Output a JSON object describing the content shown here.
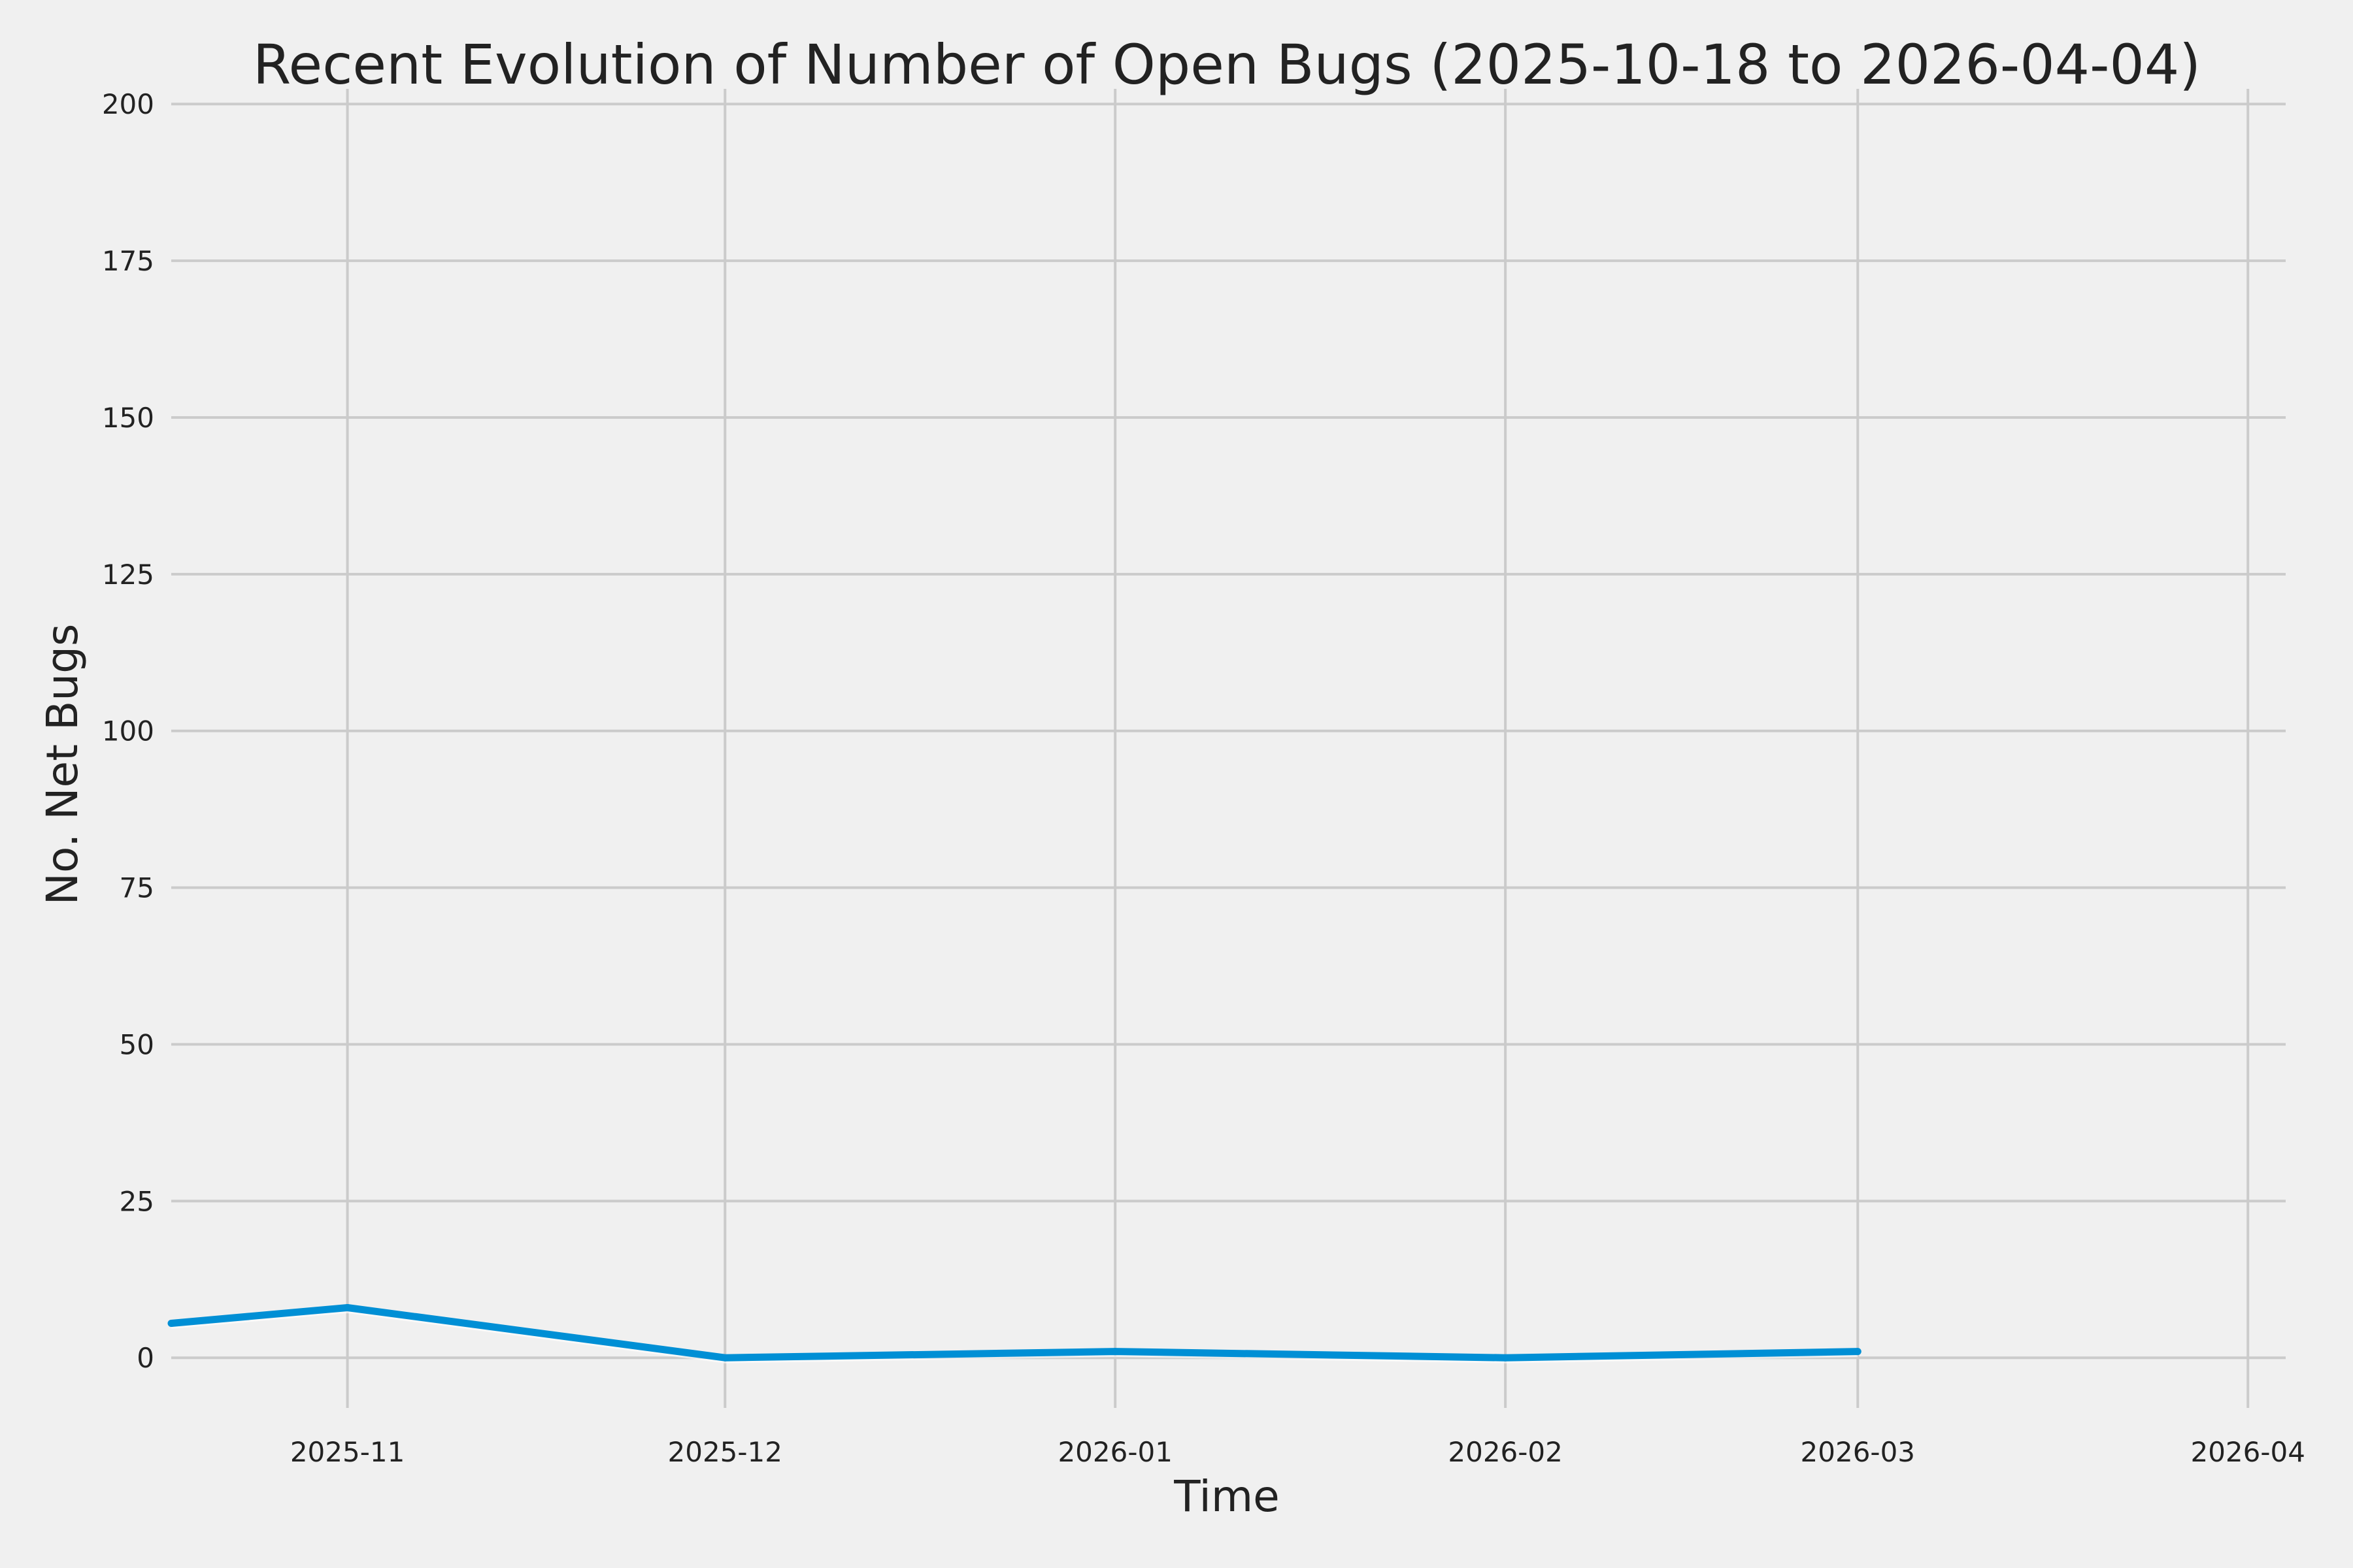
{
  "chart_data": {
    "type": "line",
    "title": "Recent Evolution of Number of Open Bugs (2025-10-18 to 2026-04-04)",
    "xlabel": "Time",
    "ylabel": "No. Net Bugs",
    "x_axis_type": "date",
    "xlim": [
      "2025-10-18",
      "2026-04-04"
    ],
    "ylim": [
      -8,
      202
    ],
    "x_ticks": [
      "2025-11-01",
      "2025-12-01",
      "2026-01-01",
      "2026-02-01",
      "2026-03-01",
      "2026-04-01"
    ],
    "x_tick_labels": [
      "2025-11",
      "2025-12",
      "2026-01",
      "2026-02",
      "2026-03",
      "2026-04"
    ],
    "y_ticks": [
      0,
      25,
      50,
      75,
      100,
      125,
      150,
      175,
      200
    ],
    "y_tick_labels": [
      "0",
      "25",
      "50",
      "75",
      "100",
      "125",
      "150",
      "175",
      "200"
    ],
    "grid": true,
    "series": [
      {
        "color": "#008fd5",
        "x": [
          "2025-10-18",
          "2025-11-01",
          "2025-12-01",
          "2026-01-01",
          "2026-02-01",
          "2026-03-01"
        ],
        "y": [
          5.5,
          8,
          0,
          1,
          0,
          1
        ]
      }
    ]
  },
  "colors": {
    "background": "#f0f0f0",
    "grid": "#cbcbcb",
    "text": "#222222"
  }
}
